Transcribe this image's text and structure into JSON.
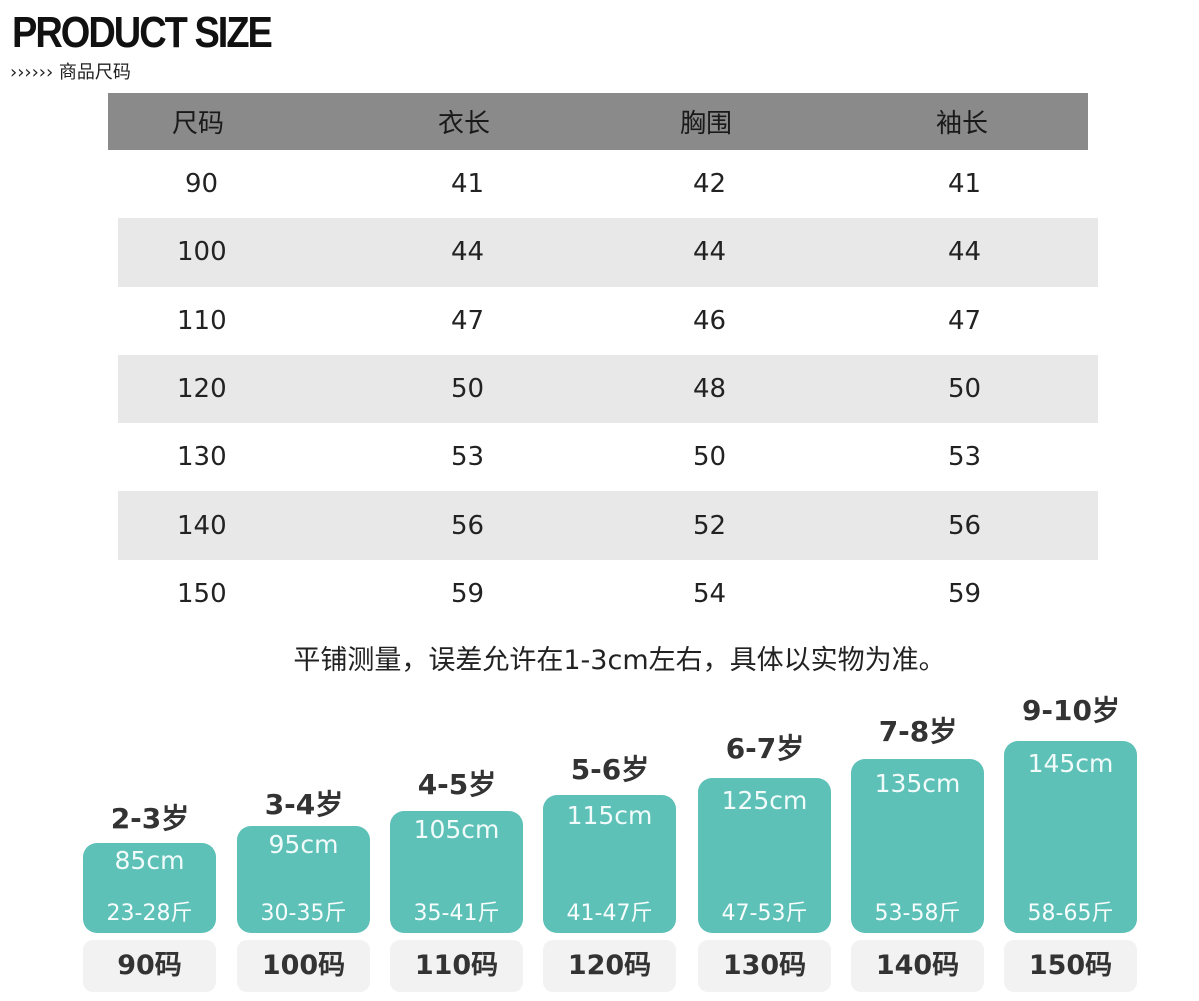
{
  "header": {
    "title": "PRODUCT SIZE",
    "subtitle": "››››››  商品尺码"
  },
  "table": {
    "columns": [
      "尺码",
      "衣长",
      "胸围",
      "袖长"
    ],
    "rows": [
      [
        "90",
        "41",
        "42",
        "41"
      ],
      [
        "100",
        "44",
        "44",
        "44"
      ],
      [
        "110",
        "47",
        "46",
        "47"
      ],
      [
        "120",
        "50",
        "48",
        "50"
      ],
      [
        "130",
        "53",
        "50",
        "53"
      ],
      [
        "140",
        "56",
        "52",
        "56"
      ],
      [
        "150",
        "59",
        "54",
        "59"
      ]
    ]
  },
  "note": "平铺测量，误差允许在1-3cm左右，具体以实物为准。",
  "guide": [
    {
      "age": "2-3岁",
      "height": "85cm",
      "weight": "23-28斤",
      "size": "90码"
    },
    {
      "age": "3-4岁",
      "height": "95cm",
      "weight": "30-35斤",
      "size": "100码"
    },
    {
      "age": "4-5岁",
      "height": "105cm",
      "weight": "35-41斤",
      "size": "110码"
    },
    {
      "age": "5-6岁",
      "height": "115cm",
      "weight": "41-47斤",
      "size": "120码"
    },
    {
      "age": "6-7岁",
      "height": "125cm",
      "weight": "47-53斤",
      "size": "130码"
    },
    {
      "age": "7-8岁",
      "height": "135cm",
      "weight": "53-58斤",
      "size": "140码"
    },
    {
      "age": "9-10岁",
      "height": "145cm",
      "weight": "58-65斤",
      "size": "150码"
    }
  ],
  "colors": {
    "header_bg": "#8a8a8a",
    "stripe_bg": "#e8e8e8",
    "teal": "#5ec1b8",
    "size_bg": "#f2f2f2"
  }
}
